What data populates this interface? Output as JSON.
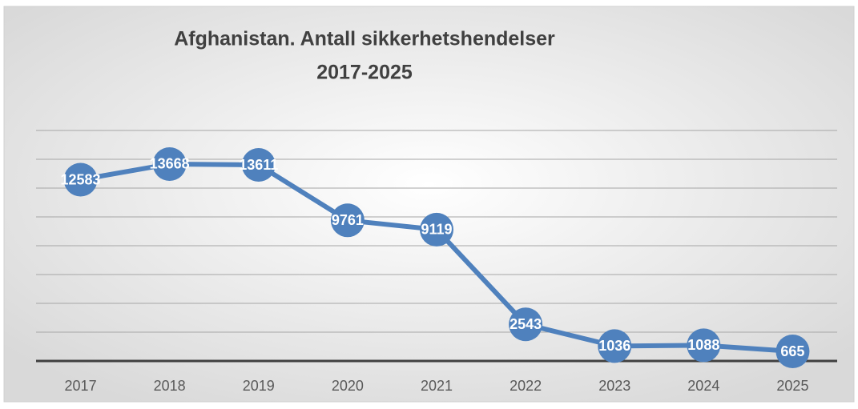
{
  "chart_data": {
    "type": "line",
    "title": [
      "Afghanistan. Antall sikkerhetshendelser",
      "2017-2025"
    ],
    "categories": [
      "2017",
      "2018",
      "2019",
      "2020",
      "2021",
      "2022",
      "2023",
      "2024",
      "2025"
    ],
    "series": [
      {
        "color": "#4f81bd",
        "values": [
          12583,
          13668,
          13611,
          9761,
          9119,
          2543,
          1036,
          1088,
          665
        ]
      }
    ],
    "ylim": [
      0,
      16000
    ],
    "yticks": [
      0,
      2000,
      4000,
      6000,
      8000,
      10000,
      12000,
      14000,
      16000
    ],
    "grid": true,
    "data_labels": true
  }
}
